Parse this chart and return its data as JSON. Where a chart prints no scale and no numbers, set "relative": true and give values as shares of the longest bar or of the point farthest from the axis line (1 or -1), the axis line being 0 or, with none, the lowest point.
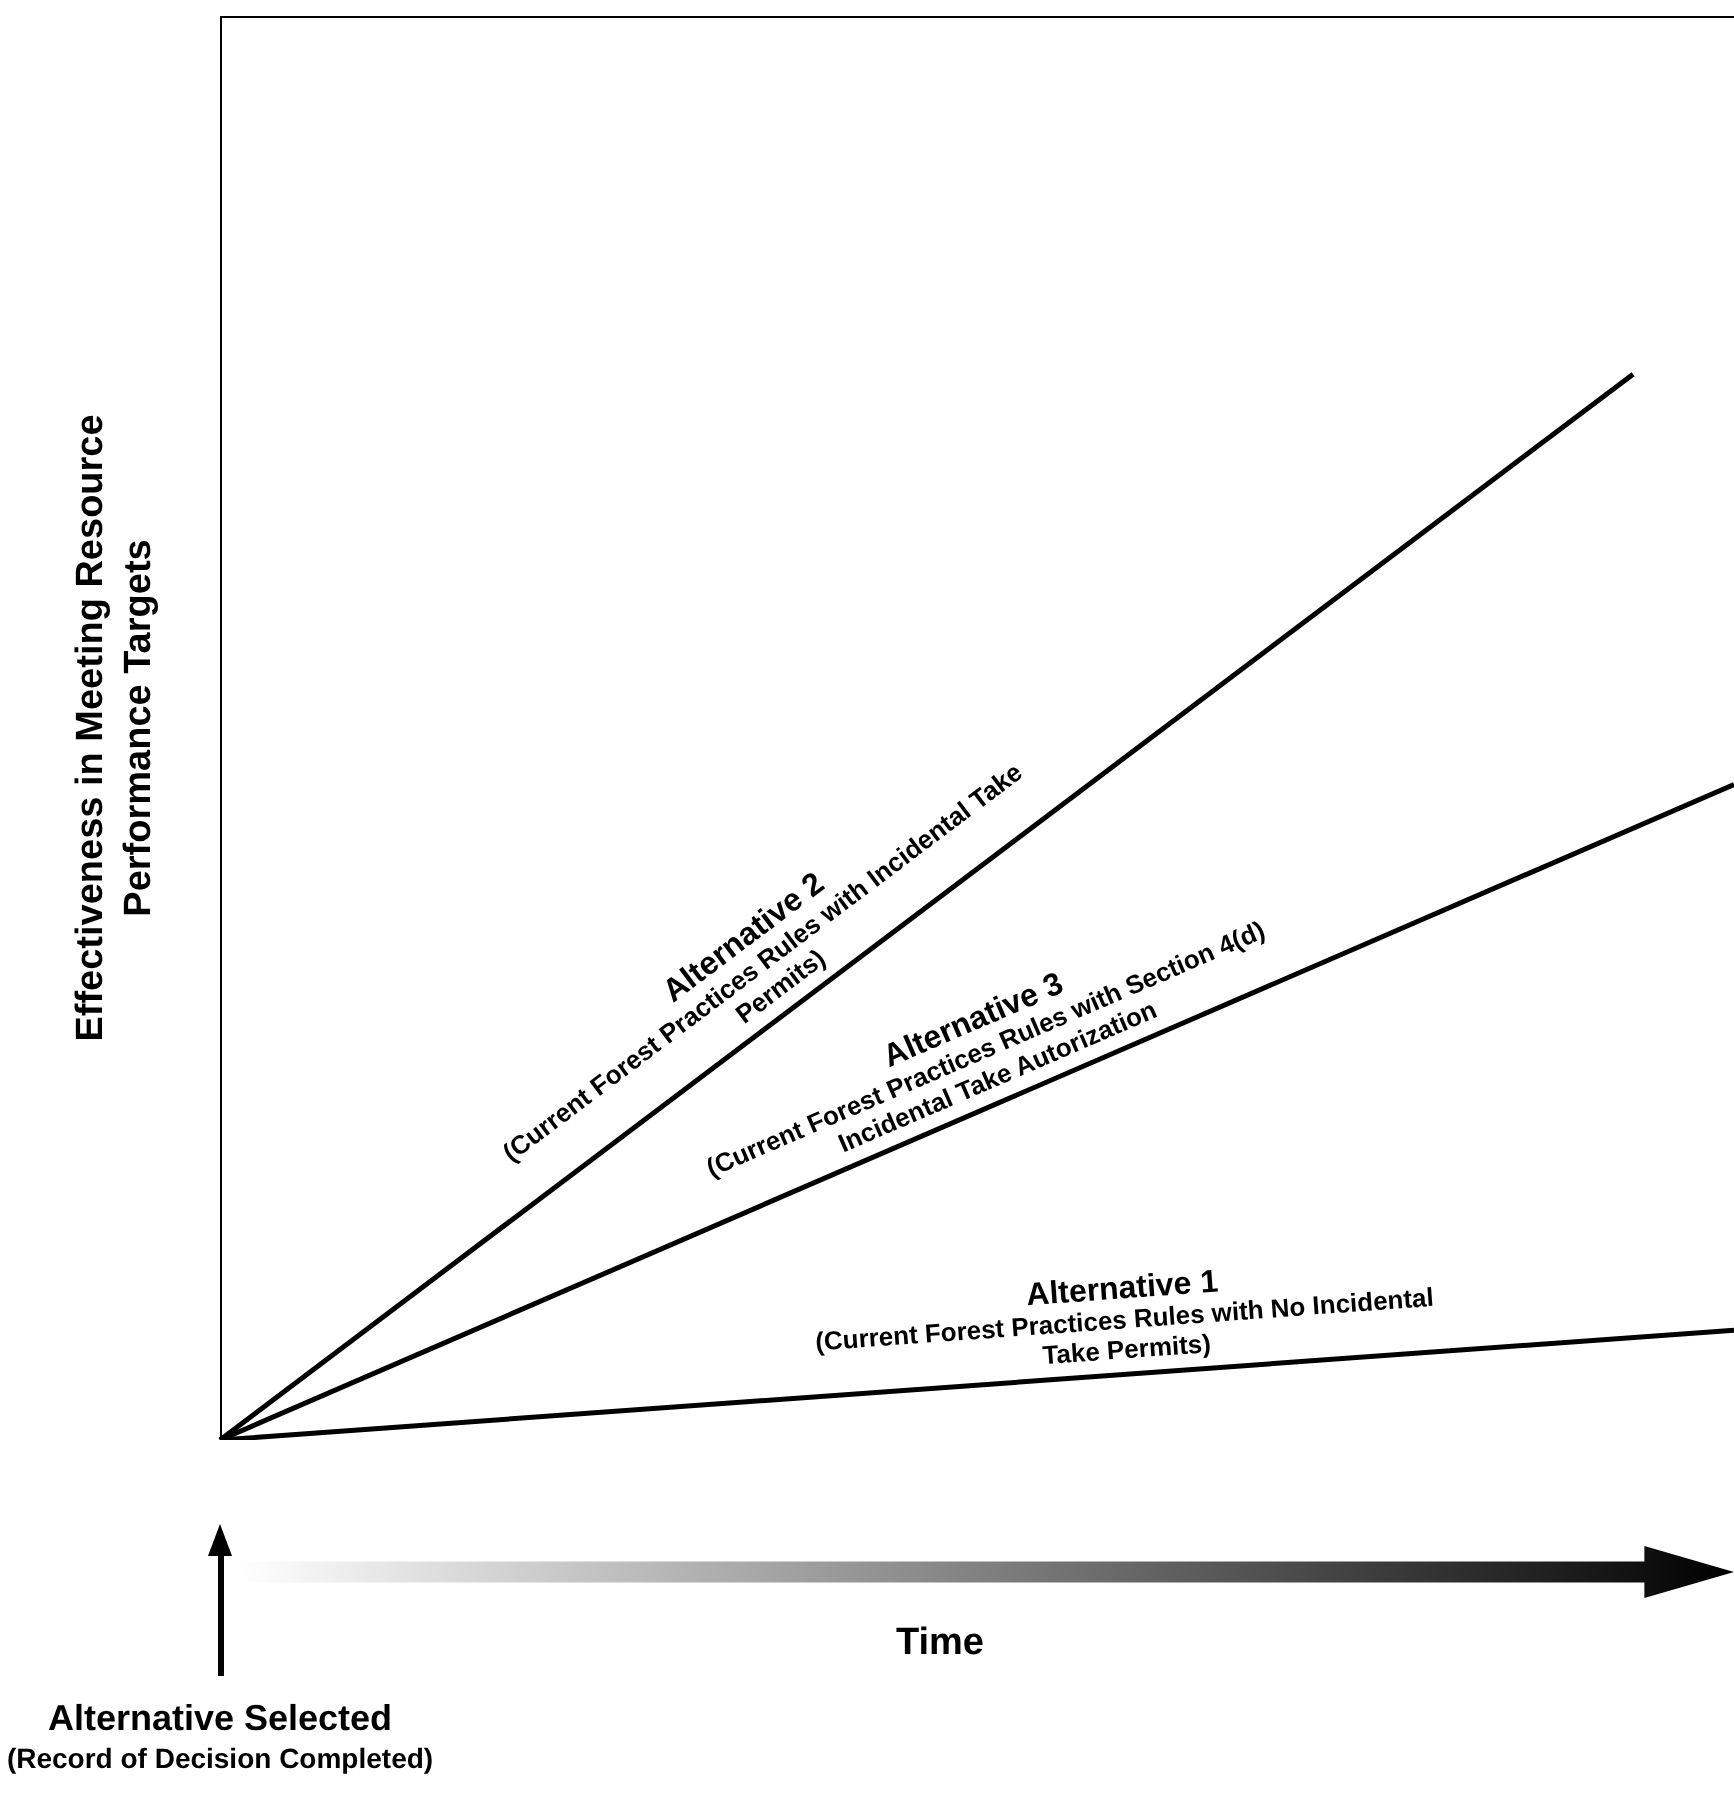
{
  "chart_data": {
    "type": "line",
    "relative": true,
    "legend": false,
    "marker": "none",
    "line_style": "solid",
    "xlabel": "Time",
    "ylabel": "Effectiveness in Meeting Resource Performance Targets",
    "categories": [
      null,
      null,
      null,
      null,
      null,
      null,
      null,
      null,
      null,
      null,
      null,
      null,
      null,
      null,
      null,
      null
    ],
    "series": [
      {
        "name": "Alternative 2",
        "color": "#000000",
        "values": [
          0,
          null,
          null,
          null,
          null,
          null,
          null,
          null,
          null,
          null,
          null,
          null,
          null,
          null,
          1,
          null
        ]
      },
      {
        "name": "Alternative 3",
        "color": "#000000",
        "values": [
          0,
          null,
          null,
          null,
          null,
          null,
          null,
          null,
          null,
          null,
          null,
          null,
          null,
          null,
          null,
          0.615
        ]
      },
      {
        "name": "Alternative 1",
        "color": "#000000",
        "values": [
          0,
          null,
          null,
          null,
          null,
          null,
          null,
          null,
          null,
          null,
          null,
          null,
          null,
          null,
          null,
          0.103
        ]
      }
    ],
    "annotations": [
      "(Current Forest Practices Rules with Incidental Take Permits)",
      "(Current Forest Practices Rules with Section 4(d) Incidental Take Autorization",
      "(Current Forest Practices Rules with No Incidental Take Permits)",
      "Alternative Selected",
      "(Record of Decision Completed)"
    ]
  }
}
